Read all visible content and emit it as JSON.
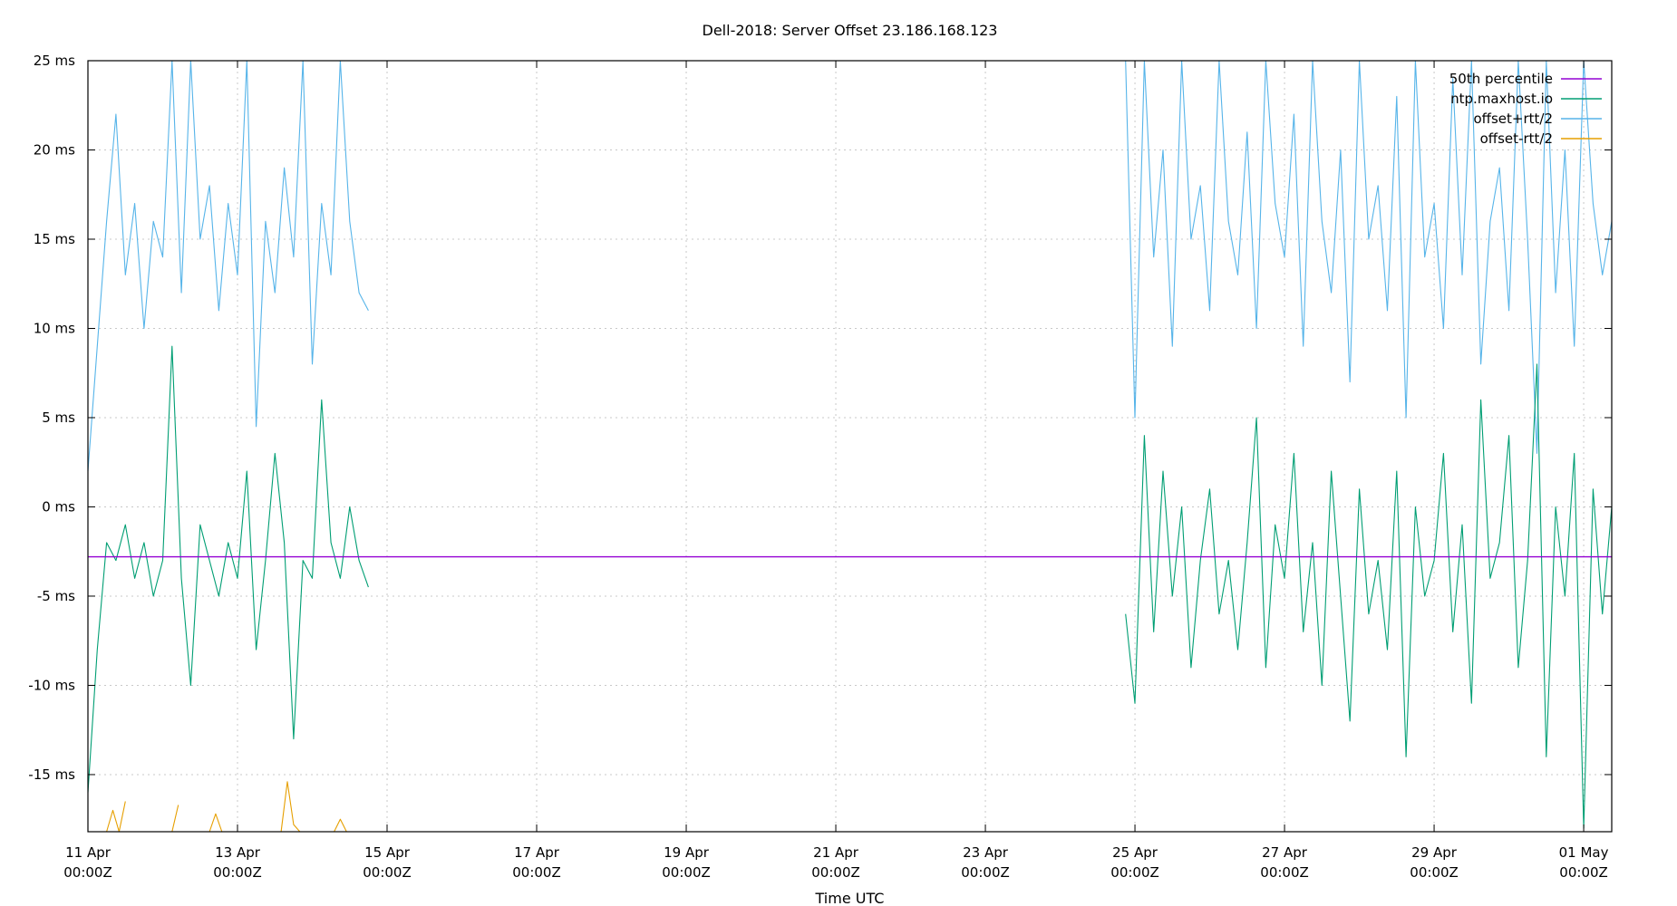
{
  "chart_data": {
    "type": "line",
    "title": "Dell-2018: Server Offset 23.186.168.123",
    "xlabel": "Time UTC",
    "ylabel": "",
    "ylim": [
      -18.2,
      25
    ],
    "xlim": [
      "2024-04-11T00:00Z",
      "2024-05-01T09:00Z"
    ],
    "yticks": [
      {
        "value": 25,
        "label": "25 ms"
      },
      {
        "value": 20,
        "label": "20 ms"
      },
      {
        "value": 15,
        "label": "15 ms"
      },
      {
        "value": 10,
        "label": "10 ms"
      },
      {
        "value": 5,
        "label": "5 ms"
      },
      {
        "value": 0,
        "label": "0 ms"
      },
      {
        "value": -5,
        "label": "-5 ms"
      },
      {
        "value": -10,
        "label": "-10 ms"
      },
      {
        "value": -15,
        "label": "-15 ms"
      }
    ],
    "xticks": [
      {
        "date": "2024-04-11T00:00Z",
        "line1": "11 Apr",
        "line2": "00:00Z"
      },
      {
        "date": "2024-04-13T00:00Z",
        "line1": "13 Apr",
        "line2": "00:00Z"
      },
      {
        "date": "2024-04-15T00:00Z",
        "line1": "15 Apr",
        "line2": "00:00Z"
      },
      {
        "date": "2024-04-17T00:00Z",
        "line1": "17 Apr",
        "line2": "00:00Z"
      },
      {
        "date": "2024-04-19T00:00Z",
        "line1": "19 Apr",
        "line2": "00:00Z"
      },
      {
        "date": "2024-04-21T00:00Z",
        "line1": "21 Apr",
        "line2": "00:00Z"
      },
      {
        "date": "2024-04-23T00:00Z",
        "line1": "23 Apr",
        "line2": "00:00Z"
      },
      {
        "date": "2024-04-25T00:00Z",
        "line1": "25 Apr",
        "line2": "00:00Z"
      },
      {
        "date": "2024-04-27T00:00Z",
        "line1": "27 Apr",
        "line2": "00:00Z"
      },
      {
        "date": "2024-04-29T00:00Z",
        "line1": "29 Apr",
        "line2": "00:00Z"
      },
      {
        "date": "2024-05-01T00:00Z",
        "line1": "01 May",
        "line2": "00:00Z"
      }
    ],
    "grid": true,
    "legend_position": "top-right",
    "series": [
      {
        "name": "50th percentile",
        "color": "#9400d3",
        "x": [
          "2024-04-11T00:00Z",
          "2024-05-01T09:00Z"
        ],
        "y": [
          -2.8,
          -2.8
        ]
      },
      {
        "name": "ntp.maxhost.io",
        "color": "#009e73",
        "x": [
          "2024-04-11T00:00Z",
          "2024-04-11T03:00Z",
          "2024-04-11T06:00Z",
          "2024-04-11T09:00Z",
          "2024-04-11T12:00Z",
          "2024-04-11T15:00Z",
          "2024-04-11T18:00Z",
          "2024-04-11T21:00Z",
          "2024-04-12T00:00Z",
          "2024-04-12T03:00Z",
          "2024-04-12T06:00Z",
          "2024-04-12T09:00Z",
          "2024-04-12T12:00Z",
          "2024-04-12T15:00Z",
          "2024-04-12T18:00Z",
          "2024-04-12T21:00Z",
          "2024-04-13T00:00Z",
          "2024-04-13T03:00Z",
          "2024-04-13T06:00Z",
          "2024-04-13T09:00Z",
          "2024-04-13T12:00Z",
          "2024-04-13T15:00Z",
          "2024-04-13T18:00Z",
          "2024-04-13T21:00Z",
          "2024-04-14T00:00Z",
          "2024-04-14T03:00Z",
          "2024-04-14T06:00Z",
          "2024-04-14T09:00Z",
          "2024-04-14T12:00Z",
          "2024-04-14T15:00Z",
          "2024-04-14T18:00Z",
          null,
          "2024-04-24T21:00Z",
          "2024-04-25T00:00Z",
          "2024-04-25T03:00Z",
          "2024-04-25T06:00Z",
          "2024-04-25T09:00Z",
          "2024-04-25T12:00Z",
          "2024-04-25T15:00Z",
          "2024-04-25T18:00Z",
          "2024-04-25T21:00Z",
          "2024-04-26T00:00Z",
          "2024-04-26T03:00Z",
          "2024-04-26T06:00Z",
          "2024-04-26T09:00Z",
          "2024-04-26T12:00Z",
          "2024-04-26T15:00Z",
          "2024-04-26T18:00Z",
          "2024-04-26T21:00Z",
          "2024-04-27T00:00Z",
          "2024-04-27T03:00Z",
          "2024-04-27T06:00Z",
          "2024-04-27T09:00Z",
          "2024-04-27T12:00Z",
          "2024-04-27T15:00Z",
          "2024-04-27T18:00Z",
          "2024-04-27T21:00Z",
          "2024-04-28T00:00Z",
          "2024-04-28T03:00Z",
          "2024-04-28T06:00Z",
          "2024-04-28T09:00Z",
          "2024-04-28T12:00Z",
          "2024-04-28T15:00Z",
          "2024-04-28T18:00Z",
          "2024-04-28T21:00Z",
          "2024-04-29T00:00Z",
          "2024-04-29T03:00Z",
          "2024-04-29T06:00Z",
          "2024-04-29T09:00Z",
          "2024-04-29T12:00Z",
          "2024-04-29T15:00Z",
          "2024-04-29T18:00Z",
          "2024-04-29T21:00Z",
          "2024-04-30T00:00Z",
          "2024-04-30T03:00Z",
          "2024-04-30T06:00Z",
          "2024-04-30T09:00Z",
          "2024-04-30T12:00Z",
          "2024-04-30T15:00Z",
          "2024-04-30T18:00Z",
          "2024-04-30T21:00Z",
          "2024-05-01T00:00Z",
          "2024-05-01T03:00Z",
          "2024-05-01T06:00Z",
          "2024-05-01T09:00Z"
        ],
        "y": [
          -16,
          -8,
          -2,
          -3,
          -1,
          -4,
          -2,
          -5,
          -3,
          9,
          -4,
          -10,
          -1,
          -3,
          -5,
          -2,
          -4,
          2,
          -8,
          -3,
          3,
          -2,
          -13,
          -3,
          -4,
          6,
          -2,
          -4,
          0,
          -3,
          -4.5,
          null,
          -6,
          -11,
          4,
          -7,
          2,
          -5,
          0,
          -9,
          -3,
          1,
          -6,
          -3,
          -8,
          -2,
          5,
          -9,
          -1,
          -4,
          3,
          -7,
          -2,
          -10,
          2,
          -5,
          -12,
          1,
          -6,
          -3,
          -8,
          2,
          -14,
          0,
          -5,
          -3,
          3,
          -7,
          -1,
          -11,
          6,
          -4,
          -2,
          4,
          -9,
          -3,
          8,
          -14,
          0,
          -5,
          3,
          -18,
          1,
          -6,
          0
        ]
      },
      {
        "name": "offset+rtt/2",
        "color": "#56b4e9",
        "x": [
          "2024-04-11T00:00Z",
          "2024-04-11T03:00Z",
          "2024-04-11T06:00Z",
          "2024-04-11T09:00Z",
          "2024-04-11T12:00Z",
          "2024-04-11T15:00Z",
          "2024-04-11T18:00Z",
          "2024-04-11T21:00Z",
          "2024-04-12T00:00Z",
          "2024-04-12T03:00Z",
          "2024-04-12T06:00Z",
          "2024-04-12T09:00Z",
          "2024-04-12T12:00Z",
          "2024-04-12T15:00Z",
          "2024-04-12T18:00Z",
          "2024-04-12T21:00Z",
          "2024-04-13T00:00Z",
          "2024-04-13T03:00Z",
          "2024-04-13T06:00Z",
          "2024-04-13T09:00Z",
          "2024-04-13T12:00Z",
          "2024-04-13T15:00Z",
          "2024-04-13T18:00Z",
          "2024-04-13T21:00Z",
          "2024-04-14T00:00Z",
          "2024-04-14T03:00Z",
          "2024-04-14T06:00Z",
          "2024-04-14T09:00Z",
          "2024-04-14T12:00Z",
          "2024-04-14T15:00Z",
          "2024-04-14T18:00Z",
          null,
          "2024-04-24T21:00Z",
          "2024-04-25T00:00Z",
          "2024-04-25T03:00Z",
          "2024-04-25T06:00Z",
          "2024-04-25T09:00Z",
          "2024-04-25T12:00Z",
          "2024-04-25T15:00Z",
          "2024-04-25T18:00Z",
          "2024-04-25T21:00Z",
          "2024-04-26T00:00Z",
          "2024-04-26T03:00Z",
          "2024-04-26T06:00Z",
          "2024-04-26T09:00Z",
          "2024-04-26T12:00Z",
          "2024-04-26T15:00Z",
          "2024-04-26T18:00Z",
          "2024-04-26T21:00Z",
          "2024-04-27T00:00Z",
          "2024-04-27T03:00Z",
          "2024-04-27T06:00Z",
          "2024-04-27T09:00Z",
          "2024-04-27T12:00Z",
          "2024-04-27T15:00Z",
          "2024-04-27T18:00Z",
          "2024-04-27T21:00Z",
          "2024-04-28T00:00Z",
          "2024-04-28T03:00Z",
          "2024-04-28T06:00Z",
          "2024-04-28T09:00Z",
          "2024-04-28T12:00Z",
          "2024-04-28T15:00Z",
          "2024-04-28T18:00Z",
          "2024-04-28T21:00Z",
          "2024-04-29T00:00Z",
          "2024-04-29T03:00Z",
          "2024-04-29T06:00Z",
          "2024-04-29T09:00Z",
          "2024-04-29T12:00Z",
          "2024-04-29T15:00Z",
          "2024-04-29T18:00Z",
          "2024-04-29T21:00Z",
          "2024-04-30T00:00Z",
          "2024-04-30T03:00Z",
          "2024-04-30T06:00Z",
          "2024-04-30T09:00Z",
          "2024-04-30T12:00Z",
          "2024-04-30T15:00Z",
          "2024-04-30T18:00Z",
          "2024-04-30T21:00Z",
          "2024-05-01T00:00Z",
          "2024-05-01T03:00Z",
          "2024-05-01T06:00Z",
          "2024-05-01T09:00Z"
        ],
        "y": [
          2,
          9,
          16,
          22,
          13,
          17,
          10,
          16,
          14,
          25,
          12,
          25,
          15,
          18,
          11,
          17,
          13,
          25,
          4.5,
          16,
          12,
          19,
          14,
          25,
          8,
          17,
          13,
          25,
          16,
          12,
          11,
          null,
          25,
          5,
          25,
          14,
          20,
          9,
          25,
          15,
          18,
          11,
          25,
          16,
          13,
          21,
          10,
          25,
          17,
          14,
          22,
          9,
          25,
          16,
          12,
          20,
          7,
          25,
          15,
          18,
          11,
          23,
          5,
          25,
          14,
          17,
          10,
          24,
          13,
          25,
          8,
          16,
          19,
          11,
          25,
          15,
          3,
          25,
          12,
          20,
          9,
          25,
          17,
          13,
          16
        ]
      },
      {
        "name": "offset-rtt/2",
        "color": "#e69f00",
        "x": [
          "2024-04-11T06:00Z",
          "2024-04-11T08:00Z",
          "2024-04-11T10:00Z",
          "2024-04-11T12:00Z",
          null,
          "2024-04-12T03:00Z",
          "2024-04-12T05:00Z",
          null,
          "2024-04-12T15:00Z",
          "2024-04-12T17:00Z",
          "2024-04-12T19:00Z",
          null,
          "2024-04-13T14:00Z",
          "2024-04-13T16:00Z",
          "2024-04-13T18:00Z",
          "2024-04-13T20:00Z",
          null,
          "2024-04-14T07:00Z",
          "2024-04-14T09:00Z",
          "2024-04-14T11:00Z"
        ],
        "y": [
          -18.5,
          -17,
          -18.2,
          -16.5,
          null,
          -18.5,
          -16.7,
          null,
          -18.5,
          -17.2,
          -18.5,
          null,
          -18.5,
          -15.4,
          -17.8,
          -18.5,
          null,
          -18.5,
          -17.5,
          -18.2
        ]
      }
    ]
  }
}
